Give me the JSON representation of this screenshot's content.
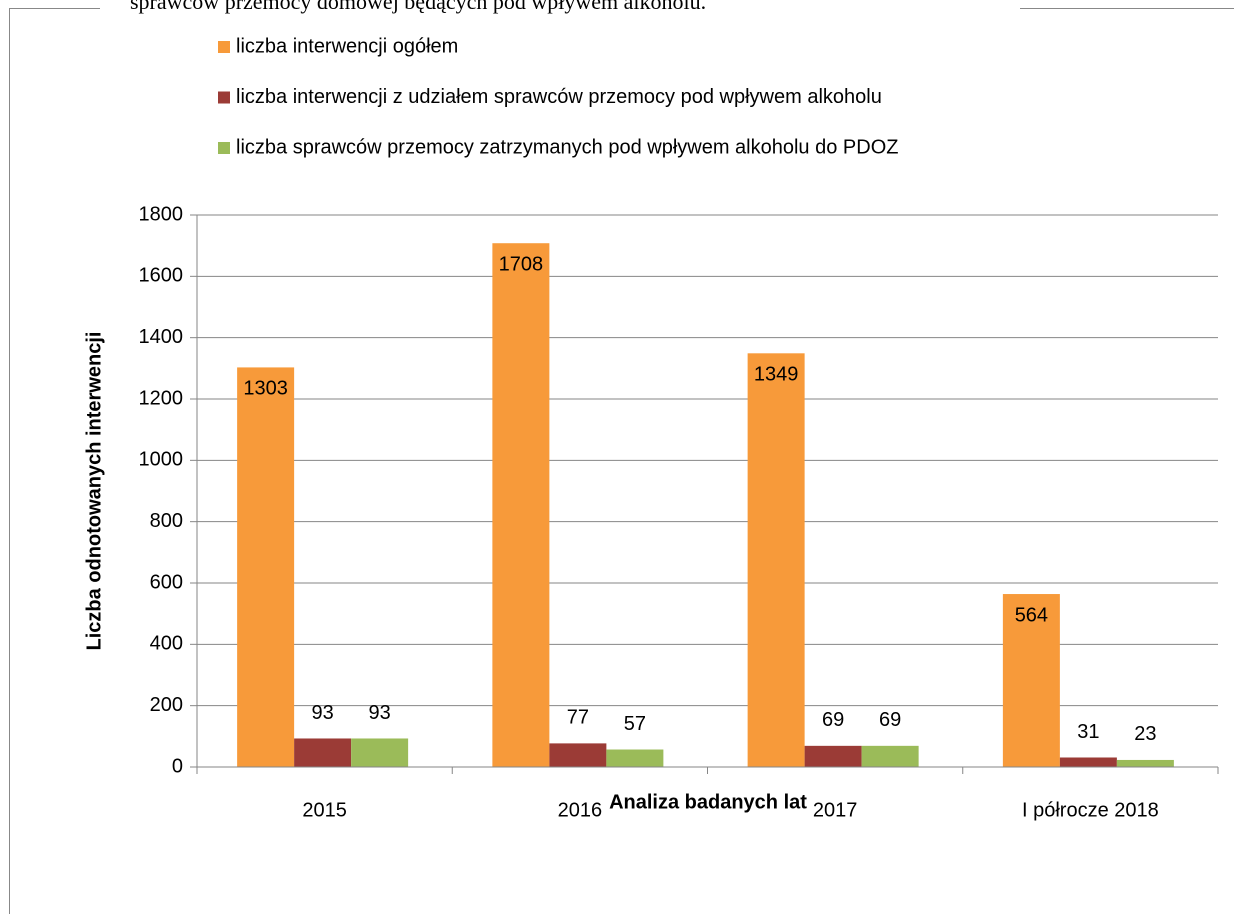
{
  "caption": "sprawców przemocy domowej będących pod wpływem alkoholu.",
  "chart_data": {
    "type": "bar",
    "categories": [
      "2015",
      "2016",
      "2017",
      "I półrocze 2018"
    ],
    "series": [
      {
        "name": "liczba interwencji ogółem",
        "color": "#f79a3a",
        "values": [
          1303,
          1708,
          1349,
          564
        ]
      },
      {
        "name": "liczba interwencji z udziałem sprawców przemocy pod wpływem alkoholu",
        "color": "#9b3b36",
        "values": [
          93,
          77,
          69,
          31
        ]
      },
      {
        "name": "liczba sprawców przemocy zatrzymanych pod wpływem alkoholu do PDOZ",
        "color": "#9bbb59",
        "values": [
          93,
          57,
          69,
          23
        ]
      }
    ],
    "ylim": [
      0,
      1800
    ],
    "yticks": [
      0,
      200,
      400,
      600,
      800,
      1000,
      1200,
      1400,
      1600,
      1800
    ],
    "grid": true,
    "legend": "top",
    "y_label": "Liczba odnotowanych interwencji",
    "x_label": "Analiza badanych lat"
  }
}
